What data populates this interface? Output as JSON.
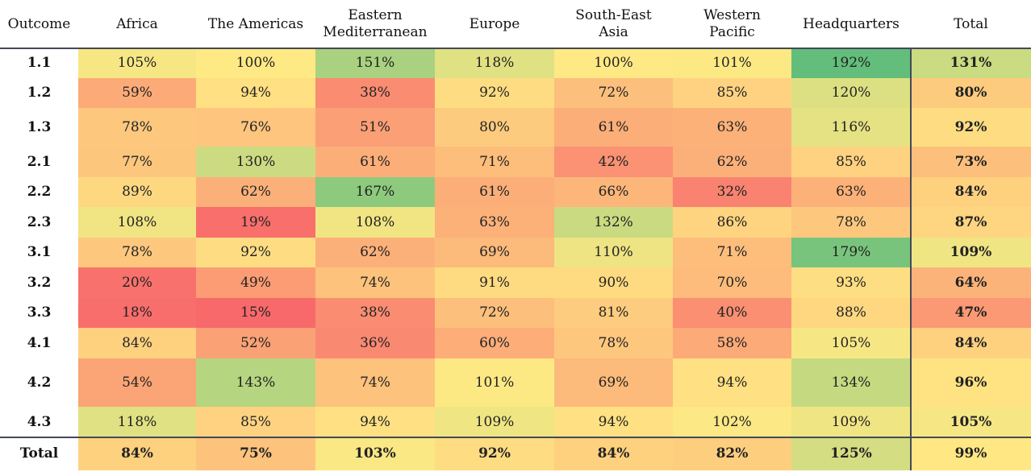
{
  "chart_data": {
    "type": "heatmap",
    "corner_label": "Outcome",
    "columns": [
      "Africa",
      "The Americas",
      "Eastern Mediterranean",
      "Europe",
      "South-East Asia",
      "Western Pacific",
      "Headquarters",
      "Total"
    ],
    "column_lines": [
      [
        "Africa"
      ],
      [
        "The Americas"
      ],
      [
        "Eastern",
        "Mediterranean"
      ],
      [
        "Europe"
      ],
      [
        "South-East",
        "Asia"
      ],
      [
        "Western",
        "Pacific"
      ],
      [
        "Headquarters"
      ],
      [
        "Total"
      ]
    ],
    "rows": [
      "1.1",
      "1.2",
      "1.3",
      "2.1",
      "2.2",
      "2.3",
      "3.1",
      "3.2",
      "3.3",
      "4.1",
      "4.2",
      "4.3"
    ],
    "values": [
      [
        105,
        100,
        151,
        118,
        100,
        101,
        192,
        131
      ],
      [
        59,
        94,
        38,
        92,
        72,
        85,
        120,
        80
      ],
      [
        78,
        76,
        51,
        80,
        61,
        63,
        116,
        92
      ],
      [
        77,
        130,
        61,
        71,
        42,
        62,
        85,
        73
      ],
      [
        89,
        62,
        167,
        61,
        66,
        32,
        63,
        84
      ],
      [
        108,
        19,
        108,
        63,
        132,
        86,
        78,
        87
      ],
      [
        78,
        92,
        62,
        69,
        110,
        71,
        179,
        109
      ],
      [
        20,
        49,
        74,
        91,
        90,
        70,
        93,
        64
      ],
      [
        18,
        15,
        38,
        72,
        81,
        40,
        88,
        47
      ],
      [
        84,
        52,
        36,
        60,
        78,
        58,
        105,
        84
      ],
      [
        54,
        143,
        74,
        101,
        69,
        94,
        134,
        96
      ],
      [
        118,
        85,
        94,
        109,
        94,
        102,
        109,
        105
      ]
    ],
    "total_row_label": "Total",
    "total_row": [
      84,
      75,
      103,
      92,
      84,
      82,
      125,
      99
    ],
    "value_suffix": "%",
    "color_scale": {
      "low": "#f8696b",
      "mid": "#ffe984",
      "high": "#63be7b",
      "stops": [
        15,
        100,
        192
      ]
    }
  }
}
